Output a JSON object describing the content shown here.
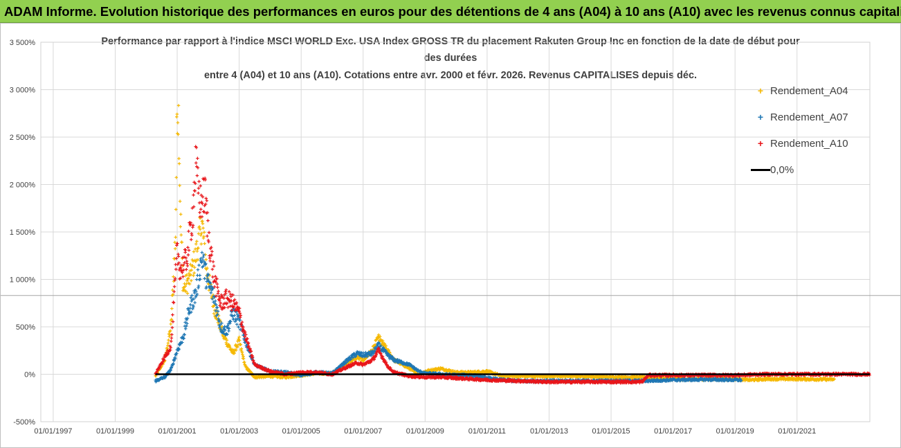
{
  "banner": {
    "title": "ADAM Informe. Evolution historique des performances en euros pour des détentions de 4 ans (A04) à 10 ans (A10) avec les revenus connus capitalisés"
  },
  "colors": {
    "banner_bg": "#92d050",
    "A04": "#f5b800",
    "A07": "#1f77b4",
    "A10": "#e8161b",
    "zero": "#000000",
    "grid": "#d9d9d9"
  },
  "chart_data": {
    "type": "scatter",
    "title_lines": [
      "Performance par rapport à l'indice MSCI WORLD Exc. USA Index GROSS TR  du placement Rakuten Group Inc en fonction de la date de début pour",
      "des durées",
      "entre 4 (A04) et 10 ans (A10).  Cotations entre avr. 2000 et févr. 2026.  Revenus CAPITALISES depuis déc."
    ],
    "x_tick_labels": [
      "01/01/1997",
      "01/01/1999",
      "01/01/2001",
      "01/01/2003",
      "01/01/2005",
      "01/01/2007",
      "01/01/2009",
      "01/01/2011",
      "01/01/2013",
      "01/01/2015",
      "01/01/2017",
      "01/01/2019",
      "01/01/2021"
    ],
    "x_range_years": [
      1996.6,
      2023.35
    ],
    "y_tick_labels": [
      "3 500%",
      "3 000%",
      "2 500%",
      "2 000%",
      "1 500%",
      "1 000%",
      "500%",
      "0%",
      "-500%"
    ],
    "y_range_pct": [
      -500,
      3500
    ],
    "reference_line_pct": 830,
    "series": [
      {
        "name": "Rendement_A04",
        "x_start": 2000.3,
        "x_end": 2022.2,
        "points": [
          [
            2000.3,
            -20
          ],
          [
            2000.6,
            150
          ],
          [
            2000.8,
            500
          ],
          [
            2000.95,
            1500
          ],
          [
            2001.0,
            2900
          ],
          [
            2001.05,
            2700
          ],
          [
            2001.1,
            1700
          ],
          [
            2001.2,
            900
          ],
          [
            2001.4,
            1000
          ],
          [
            2001.6,
            1250
          ],
          [
            2001.8,
            1600
          ],
          [
            2001.95,
            1100
          ],
          [
            2002.2,
            700
          ],
          [
            2002.5,
            400
          ],
          [
            2002.8,
            220
          ],
          [
            2003.0,
            350
          ],
          [
            2003.2,
            80
          ],
          [
            2003.5,
            -30
          ],
          [
            2004.0,
            -20
          ],
          [
            2004.5,
            -30
          ],
          [
            2005.0,
            -10
          ],
          [
            2005.5,
            10
          ],
          [
            2006.0,
            10
          ],
          [
            2006.5,
            120
          ],
          [
            2006.8,
            180
          ],
          [
            2007.0,
            150
          ],
          [
            2007.3,
            250
          ],
          [
            2007.5,
            380
          ],
          [
            2007.8,
            240
          ],
          [
            2008.0,
            150
          ],
          [
            2008.5,
            60
          ],
          [
            2008.8,
            -10
          ],
          [
            2009.0,
            30
          ],
          [
            2009.5,
            60
          ],
          [
            2010.0,
            20
          ],
          [
            2010.5,
            20
          ],
          [
            2011.0,
            30
          ],
          [
            2011.5,
            -20
          ],
          [
            2012.0,
            -20
          ],
          [
            2013.0,
            -20
          ],
          [
            2014.0,
            -20
          ],
          [
            2015.0,
            -30
          ],
          [
            2016.0,
            -30
          ],
          [
            2016.5,
            -40
          ],
          [
            2017.0,
            -50
          ],
          [
            2018.0,
            -50
          ],
          [
            2019.0,
            -50
          ],
          [
            2019.5,
            -60
          ],
          [
            2020.0,
            -50
          ],
          [
            2021.0,
            -50
          ],
          [
            2022.2,
            -55
          ]
        ]
      },
      {
        "name": "Rendement_A07",
        "x_start": 2000.3,
        "x_end": 2019.2,
        "points": [
          [
            2000.3,
            -70
          ],
          [
            2000.6,
            -30
          ],
          [
            2000.8,
            50
          ],
          [
            2001.0,
            250
          ],
          [
            2001.2,
            400
          ],
          [
            2001.4,
            700
          ],
          [
            2001.6,
            850
          ],
          [
            2001.8,
            1250
          ],
          [
            2001.95,
            1000
          ],
          [
            2002.2,
            800
          ],
          [
            2002.4,
            500
          ],
          [
            2002.6,
            450
          ],
          [
            2002.8,
            650
          ],
          [
            2003.0,
            550
          ],
          [
            2003.2,
            350
          ],
          [
            2003.5,
            100
          ],
          [
            2004.0,
            30
          ],
          [
            2004.5,
            20
          ],
          [
            2005.0,
            -10
          ],
          [
            2005.5,
            20
          ],
          [
            2006.0,
            10
          ],
          [
            2006.5,
            150
          ],
          [
            2006.8,
            220
          ],
          [
            2007.0,
            200
          ],
          [
            2007.3,
            220
          ],
          [
            2007.5,
            300
          ],
          [
            2007.8,
            200
          ],
          [
            2008.0,
            150
          ],
          [
            2008.5,
            100
          ],
          [
            2008.8,
            30
          ],
          [
            2009.0,
            10
          ],
          [
            2009.5,
            0
          ],
          [
            2010.0,
            -10
          ],
          [
            2010.5,
            -10
          ],
          [
            2011.0,
            -40
          ],
          [
            2011.5,
            -60
          ],
          [
            2012.0,
            -70
          ],
          [
            2013.0,
            -70
          ],
          [
            2014.0,
            -70
          ],
          [
            2015.0,
            -70
          ],
          [
            2016.0,
            -70
          ],
          [
            2017.0,
            -60
          ],
          [
            2018.0,
            -55
          ],
          [
            2019.2,
            -60
          ]
        ]
      },
      {
        "name": "Rendement_A10",
        "x_start": 2000.3,
        "x_end": 2023.35,
        "points": [
          [
            2000.3,
            0
          ],
          [
            2000.6,
            180
          ],
          [
            2000.8,
            300
          ],
          [
            2001.0,
            1300
          ],
          [
            2001.1,
            1100
          ],
          [
            2001.3,
            1200
          ],
          [
            2001.5,
            1700
          ],
          [
            2001.6,
            2200
          ],
          [
            2001.75,
            1800
          ],
          [
            2001.9,
            1900
          ],
          [
            2002.0,
            1500
          ],
          [
            2002.2,
            1000
          ],
          [
            2002.4,
            750
          ],
          [
            2002.6,
            800
          ],
          [
            2002.8,
            750
          ],
          [
            2003.0,
            650
          ],
          [
            2003.2,
            400
          ],
          [
            2003.5,
            100
          ],
          [
            2004.0,
            30
          ],
          [
            2004.5,
            0
          ],
          [
            2005.0,
            20
          ],
          [
            2005.5,
            20
          ],
          [
            2006.0,
            0
          ],
          [
            2006.5,
            80
          ],
          [
            2006.8,
            120
          ],
          [
            2007.0,
            100
          ],
          [
            2007.3,
            150
          ],
          [
            2007.5,
            250
          ],
          [
            2007.8,
            80
          ],
          [
            2008.0,
            20
          ],
          [
            2008.5,
            -20
          ],
          [
            2009.0,
            -30
          ],
          [
            2009.5,
            -30
          ],
          [
            2010.0,
            -40
          ],
          [
            2010.5,
            -50
          ],
          [
            2011.0,
            -60
          ],
          [
            2012.0,
            -70
          ],
          [
            2013.0,
            -80
          ],
          [
            2014.0,
            -80
          ],
          [
            2015.0,
            -80
          ],
          [
            2016.0,
            -80
          ],
          [
            2016.2,
            -10
          ],
          [
            2017.0,
            -10
          ],
          [
            2018.0,
            -10
          ],
          [
            2019.0,
            -10
          ],
          [
            2020.0,
            0
          ],
          [
            2021.0,
            0
          ],
          [
            2022.0,
            0
          ],
          [
            2023.35,
            0
          ]
        ]
      }
    ],
    "legend": [
      {
        "label": "Rendement_A04",
        "marker": "+",
        "color": "#f5b800"
      },
      {
        "label": "Rendement_A07",
        "marker": "+",
        "color": "#1f77b4"
      },
      {
        "label": "Rendement_A10",
        "marker": "+",
        "color": "#e8161b"
      },
      {
        "label": "0,0%",
        "marker": "line",
        "color": "#000000"
      }
    ]
  }
}
